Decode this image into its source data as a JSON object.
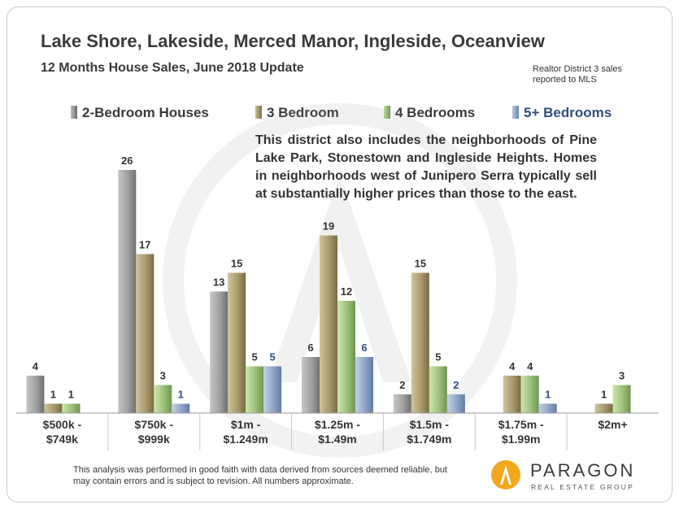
{
  "title": "Lake Shore, Lakeside, Merced Manor, Ingleside, Oceanview",
  "subtitle": "12 Months House Sales, June 2018 Update",
  "note_line1": "Realtor District  3 sales",
  "note_line2": "reported to MLS",
  "description": "This district also includes the neighborhoods of Pine Lake Park, Stonestown and Ingleside Heights. Homes in neighborhoods west of Junipero Serra typically sell at substantially higher prices than those to the east.",
  "footnote": "This analysis was performed in good faith with data derived from sources deemed reliable, but may contain errors and is subject to revision. All numbers approximate.",
  "logo": {
    "name": "PARAGON",
    "tagline": "REAL ESTATE GROUP"
  },
  "colors": {
    "two_bed": "#9a9a9a",
    "three_bed": "#a89a6e",
    "four_bed": "#9cc07a",
    "five_bed": "#8ea4c8",
    "title": "#3a3a3a"
  },
  "chart_data": {
    "type": "bar",
    "categories": [
      [
        "$500k -",
        "$749k"
      ],
      [
        "$750k -",
        "$999k"
      ],
      [
        "$1m -",
        "$1.249m"
      ],
      [
        "$1.25m -",
        "$1.49m"
      ],
      [
        "$1.5m -",
        "$1.749m"
      ],
      [
        "$1.75m -",
        "$1.99m"
      ],
      [
        "$2m+"
      ]
    ],
    "series": [
      {
        "name": "2-Bedroom Houses",
        "values": [
          4,
          26,
          13,
          6,
          2,
          null,
          null
        ],
        "label_color": "#333333"
      },
      {
        "name": "3 Bedroom",
        "values": [
          1,
          17,
          15,
          19,
          15,
          4,
          1
        ],
        "label_color": "#333333"
      },
      {
        "name": "4 Bedrooms",
        "values": [
          1,
          3,
          5,
          12,
          5,
          4,
          3
        ],
        "label_color": "#333333"
      },
      {
        "name": "5+ Bedrooms",
        "values": [
          null,
          1,
          5,
          6,
          2,
          1,
          null
        ],
        "label_color": "#2f4f7a"
      }
    ],
    "ylim": [
      0,
      26
    ],
    "grid": false,
    "legend_position": "top"
  }
}
